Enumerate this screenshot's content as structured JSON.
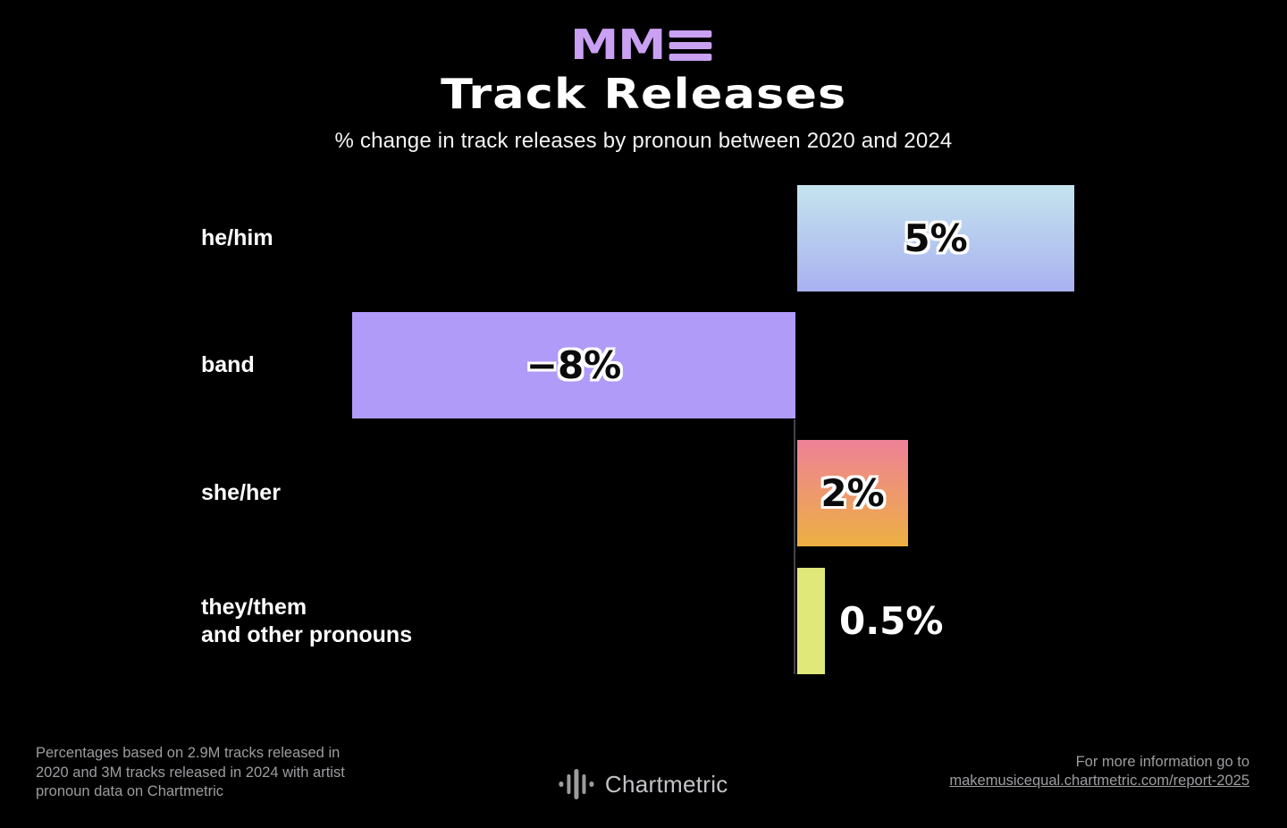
{
  "header": {
    "logo_text": "MM",
    "logo_color": "#c9a0f2",
    "title": "Track Releases",
    "subtitle": "% change in track releases by pronoun between 2020 and 2024"
  },
  "chart_data": {
    "type": "bar",
    "orientation": "horizontal",
    "title": "Track Releases",
    "subtitle": "% change in track releases by pronoun between 2020 and 2024",
    "xlabel": "",
    "ylabel": "",
    "xlim": [
      -8,
      5.5
    ],
    "grid": false,
    "legend": false,
    "zero_line": true,
    "categories": [
      "he/him",
      "band",
      "she/her",
      "they/them and other pronouns"
    ],
    "values": [
      5,
      -8,
      2,
      0.5
    ],
    "rows": [
      {
        "category": "he/him",
        "category_line2": "",
        "value": 5,
        "label": "5%",
        "label_position": "inside",
        "color_from": "#c4e4ee",
        "color_to": "#a9b1f0"
      },
      {
        "category": "band",
        "category_line2": "",
        "value": -8,
        "label": "−8%",
        "label_position": "inside",
        "color_from": "#b09bf8",
        "color_to": "#b09bf8"
      },
      {
        "category": "she/her",
        "category_line2": "",
        "value": 2,
        "label": "2%",
        "label_position": "inside",
        "color_from": "#ee8198",
        "color_to": "#edb042"
      },
      {
        "category": "they/them",
        "category_line2": "and other pronouns",
        "value": 0.5,
        "label": "0.5%",
        "label_position": "outside",
        "color_from": "#dfe878",
        "color_to": "#dfe878"
      }
    ]
  },
  "footer": {
    "note_lines": [
      "Percentages based on 2.9M tracks released in",
      "2020 and 3M tracks released in 2024 with artist",
      "pronoun data on Chartmetric"
    ],
    "brand_name": "Chartmetric",
    "info_text": "For more information go to",
    "info_link": "makemusicequal.chartmetric.com/report-2025"
  }
}
